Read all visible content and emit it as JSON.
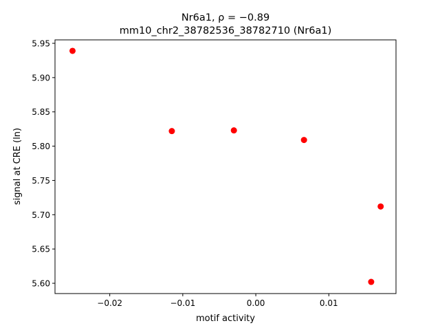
{
  "chart_data": {
    "type": "scatter",
    "title_line1": "Nr6a1, ρ = −0.89",
    "title_line2": "mm10_chr2_38782536_38782710 (Nr6a1)",
    "xlabel": "motif activity",
    "ylabel": "signal at CRE (ln)",
    "xlim": [
      -0.0275,
      0.0192
    ],
    "ylim": [
      5.585,
      5.955
    ],
    "xticks": [
      -0.02,
      -0.01,
      0.0,
      0.01
    ],
    "xtick_labels": [
      "−0.02",
      "−0.01",
      "0.00",
      "0.01"
    ],
    "yticks": [
      5.6,
      5.65,
      5.7,
      5.75,
      5.8,
      5.85,
      5.9,
      5.95
    ],
    "ytick_labels": [
      "5.60",
      "5.65",
      "5.70",
      "5.75",
      "5.80",
      "5.85",
      "5.90",
      "5.95"
    ],
    "grid": false,
    "marker_color": "#ff0000",
    "points": [
      {
        "x": -0.0251,
        "y": 5.939
      },
      {
        "x": -0.0115,
        "y": 5.822
      },
      {
        "x": -0.003,
        "y": 5.823
      },
      {
        "x": 0.0066,
        "y": 5.809
      },
      {
        "x": 0.0158,
        "y": 5.602
      },
      {
        "x": 0.0171,
        "y": 5.712
      }
    ]
  }
}
